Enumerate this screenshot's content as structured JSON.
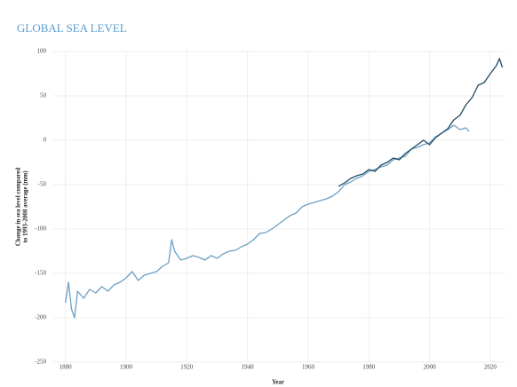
{
  "chart_data": {
    "type": "line",
    "title": "GLOBAL SEA LEVEL",
    "xlabel": "Year",
    "ylabel": [
      "Change in sea level compared",
      "to 1993-2008 average (mm)"
    ],
    "xlim": [
      1876,
      2025
    ],
    "ylim": [
      -250,
      100
    ],
    "xticks": [
      1880,
      1900,
      1920,
      1940,
      1960,
      1980,
      2000,
      2020
    ],
    "yticks": [
      -250,
      -200,
      -150,
      -100,
      -50,
      0,
      50,
      100
    ],
    "grid": true,
    "series": [
      {
        "color": "#6b9fc4",
        "x": [
          1880,
          1881,
          1882,
          1883,
          1884,
          1886,
          1888,
          1890,
          1892,
          1894,
          1896,
          1898,
          1900,
          1902,
          1904,
          1906,
          1908,
          1910,
          1912,
          1914,
          1915,
          1916,
          1918,
          1920,
          1922,
          1924,
          1926,
          1928,
          1930,
          1932,
          1934,
          1936,
          1938,
          1940,
          1942,
          1944,
          1946,
          1948,
          1950,
          1952,
          1954,
          1956,
          1958,
          1960,
          1962,
          1964,
          1966,
          1968,
          1970,
          1972,
          1974,
          1976,
          1978,
          1980,
          1982,
          1984,
          1986,
          1988,
          1990,
          1992,
          1994,
          1996,
          1998,
          2000,
          2002,
          2004,
          2006,
          2008,
          2010,
          2012,
          2013
        ],
        "values": [
          -183,
          -160,
          -190,
          -200,
          -170,
          -178,
          -168,
          -172,
          -165,
          -170,
          -163,
          -160,
          -155,
          -148,
          -158,
          -152,
          -150,
          -148,
          -142,
          -138,
          -112,
          -125,
          -135,
          -133,
          -130,
          -132,
          -135,
          -130,
          -133,
          -128,
          -125,
          -124,
          -120,
          -117,
          -112,
          -105,
          -104,
          -100,
          -95,
          -90,
          -85,
          -82,
          -75,
          -72,
          -70,
          -68,
          -66,
          -63,
          -58,
          -50,
          -47,
          -43,
          -40,
          -35,
          -33,
          -30,
          -28,
          -22,
          -20,
          -18,
          -10,
          -8,
          -5,
          -3,
          4,
          8,
          12,
          17,
          12,
          14,
          10
        ]
      },
      {
        "color": "#1d4a63",
        "x": [
          1970,
          1972,
          1974,
          1976,
          1978,
          1980,
          1982,
          1984,
          1986,
          1988,
          1990,
          1992,
          1994,
          1996,
          1998,
          2000,
          2002,
          2004,
          2006,
          2008,
          2010,
          2012,
          2014,
          2016,
          2018,
          2020,
          2022,
          2023,
          2024
        ],
        "values": [
          -52,
          -48,
          -43,
          -40,
          -38,
          -33,
          -35,
          -28,
          -25,
          -20,
          -22,
          -15,
          -10,
          -5,
          0,
          -5,
          3,
          8,
          13,
          23,
          28,
          40,
          48,
          62,
          65,
          75,
          84,
          92,
          82
        ]
      }
    ]
  }
}
